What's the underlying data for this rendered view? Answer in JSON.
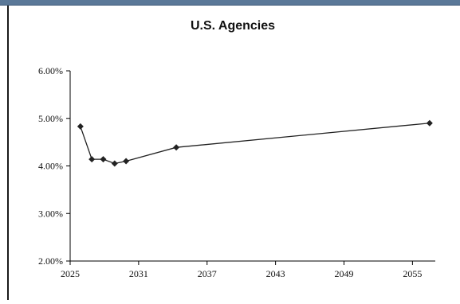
{
  "chart_data": {
    "type": "line",
    "title": "U.S. Agencies",
    "xlabel": "",
    "ylabel": "",
    "xlim": [
      2025,
      2057
    ],
    "ylim": [
      0.02,
      0.06
    ],
    "x_ticks": [
      2025,
      2031,
      2037,
      2043,
      2049,
      2055
    ],
    "x_tick_labels": [
      "2025",
      "2031",
      "2037",
      "2043",
      "2049",
      "2055"
    ],
    "y_ticks": [
      0.02,
      0.03,
      0.04,
      0.05,
      0.06
    ],
    "y_tick_labels": [
      "2.00%",
      "3.00%",
      "4.00%",
      "5.00%",
      "6.00%"
    ],
    "grid": false,
    "legend": "none",
    "series": [
      {
        "x": [
          2025.9,
          2026.9,
          2027.9,
          2028.9,
          2029.9,
          2034.3,
          2056.5
        ],
        "y": [
          0.0483,
          0.0414,
          0.0414,
          0.0405,
          0.041,
          0.0439,
          0.049
        ]
      }
    ]
  },
  "colors": {
    "series": "#222222",
    "header_bar": "#5a7898"
  }
}
